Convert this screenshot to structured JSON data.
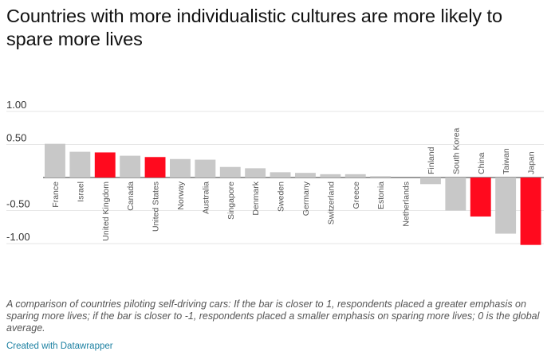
{
  "title": "Countries with more individualistic cultures are more likely to spare more lives",
  "note": "A comparison of countries piloting self-driving cars: If the bar is closer to 1, respondents placed a greater emphasis on sparing more lives; if the bar is closer to -1, respondents placed a smaller emphasis on sparing more lives; 0 is the global average.",
  "credit": "Created with Datawrapper",
  "colors": {
    "default": "#c8c8c8",
    "highlight": "#ff0a1e",
    "grid": "#e6e6e6",
    "axis": "#333333",
    "label": "#555555"
  },
  "chart_data": {
    "type": "bar",
    "categories": [
      "France",
      "Israel",
      "United Kingdom",
      "Canada",
      "United States",
      "Norway",
      "Australia",
      "Singapore",
      "Denmark",
      "Sweden",
      "Germany",
      "Switzerland",
      "Greece",
      "Estonia",
      "Netherlands",
      "Finland",
      "South Korea",
      "China",
      "Taiwan",
      "Japan"
    ],
    "values": [
      0.51,
      0.39,
      0.38,
      0.33,
      0.31,
      0.28,
      0.27,
      0.16,
      0.14,
      0.08,
      0.07,
      0.05,
      0.05,
      0.02,
      0.0,
      -0.1,
      -0.5,
      -0.59,
      -0.85,
      -1.02
    ],
    "highlighted": [
      "United Kingdom",
      "United States",
      "China",
      "Japan"
    ],
    "yticks": [
      "1.00",
      "0.50",
      "-0.50",
      "-1.00"
    ],
    "ytick_values": [
      1.0,
      0.5,
      -0.5,
      -1.0
    ],
    "ylim": [
      -1.02,
      1.0
    ],
    "grid": true,
    "xlabel": "",
    "ylabel": ""
  }
}
